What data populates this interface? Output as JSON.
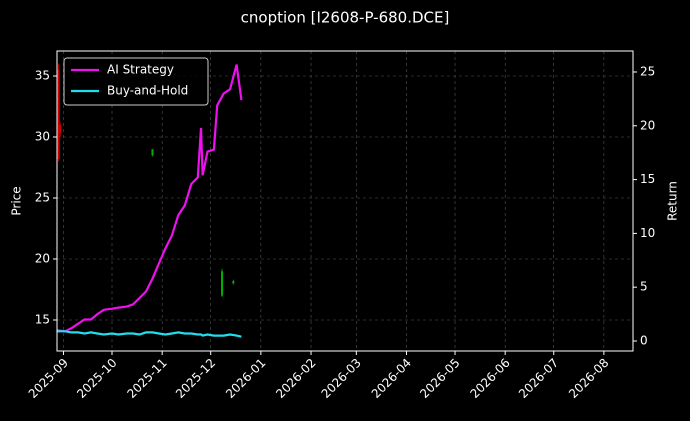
{
  "chart_data": {
    "type": "line",
    "title": "cnoption [I2608-P-680.DCE]",
    "ylabel": "Price",
    "y2label": "Return",
    "x": [
      "2025-08-28",
      "2025-09-02",
      "2025-09-06",
      "2025-09-10",
      "2025-09-14",
      "2025-09-18",
      "2025-09-22",
      "2025-09-26",
      "2025-10-01",
      "2025-10-05",
      "2025-10-10",
      "2025-10-14",
      "2025-10-18",
      "2025-10-22",
      "2025-10-26",
      "2025-10-30",
      "2025-11-03",
      "2025-11-07",
      "2025-11-11",
      "2025-11-15",
      "2025-11-19",
      "2025-11-23",
      "2025-11-25",
      "2025-11-26",
      "2025-11-29",
      "2025-12-03",
      "2025-12-05",
      "2025-12-09",
      "2025-12-13",
      "2025-12-17",
      "2025-12-20"
    ],
    "series": [
      {
        "name": "AI Strategy",
        "color": "#ee10ee",
        "axis": "y2",
        "values": [
          1.0,
          0.9,
          1.2,
          1.6,
          2.0,
          2.0,
          2.5,
          2.9,
          3.0,
          3.1,
          3.2,
          3.4,
          4.0,
          4.6,
          5.8,
          7.2,
          8.6,
          9.8,
          11.7,
          12.6,
          14.6,
          15.2,
          19.8,
          15.4,
          17.6,
          17.8,
          21.9,
          23.0,
          23.4,
          25.7,
          22.4
        ]
      },
      {
        "name": "Buy-and-Hold",
        "color": "#22ddee",
        "axis": "y2",
        "values": [
          0.9,
          0.9,
          0.8,
          0.8,
          0.7,
          0.8,
          0.7,
          0.6,
          0.7,
          0.6,
          0.7,
          0.7,
          0.6,
          0.8,
          0.8,
          0.7,
          0.6,
          0.7,
          0.8,
          0.7,
          0.7,
          0.6,
          0.6,
          0.5,
          0.6,
          0.5,
          0.5,
          0.5,
          0.6,
          0.5,
          0.4
        ]
      }
    ],
    "candles": {
      "x": [
        "2025-08-29",
        "2025-08-30",
        "2025-10-26",
        "2025-12-08",
        "2025-12-15"
      ],
      "open": [
        35.5,
        31.0,
        28.5,
        17.0,
        18.0
      ],
      "high": [
        36.0,
        31.2,
        29.0,
        19.2,
        18.3
      ],
      "low": [
        28.0,
        30.0,
        28.4,
        16.9,
        17.9
      ],
      "close": [
        28.2,
        30.3,
        29.0,
        19.0,
        18.2
      ]
    },
    "xlim": [
      "2025-08-28",
      "2026-08-19"
    ],
    "xticks": [
      {
        "value": "2025-09-01",
        "label": "2025-09"
      },
      {
        "value": "2025-10-01",
        "label": "2025-10"
      },
      {
        "value": "2025-11-01",
        "label": "2025-11"
      },
      {
        "value": "2025-12-01",
        "label": "2025-12"
      },
      {
        "value": "2026-01-01",
        "label": "2026-01"
      },
      {
        "value": "2026-02-01",
        "label": "2026-02"
      },
      {
        "value": "2026-03-01",
        "label": "2026-03"
      },
      {
        "value": "2026-04-01",
        "label": "2026-04"
      },
      {
        "value": "2026-05-01",
        "label": "2026-05"
      },
      {
        "value": "2026-06-01",
        "label": "2026-06"
      },
      {
        "value": "2026-07-01",
        "label": "2026-07"
      },
      {
        "value": "2026-08-01",
        "label": "2026-08"
      }
    ],
    "ylim": [
      12.46,
      37.05
    ],
    "yticks": [
      15,
      20,
      25,
      30,
      35
    ],
    "y2lim": [
      -0.93,
      26.95
    ],
    "y2ticks": [
      0,
      5,
      10,
      15,
      20,
      25
    ],
    "grid": true,
    "legend": "upper left"
  }
}
